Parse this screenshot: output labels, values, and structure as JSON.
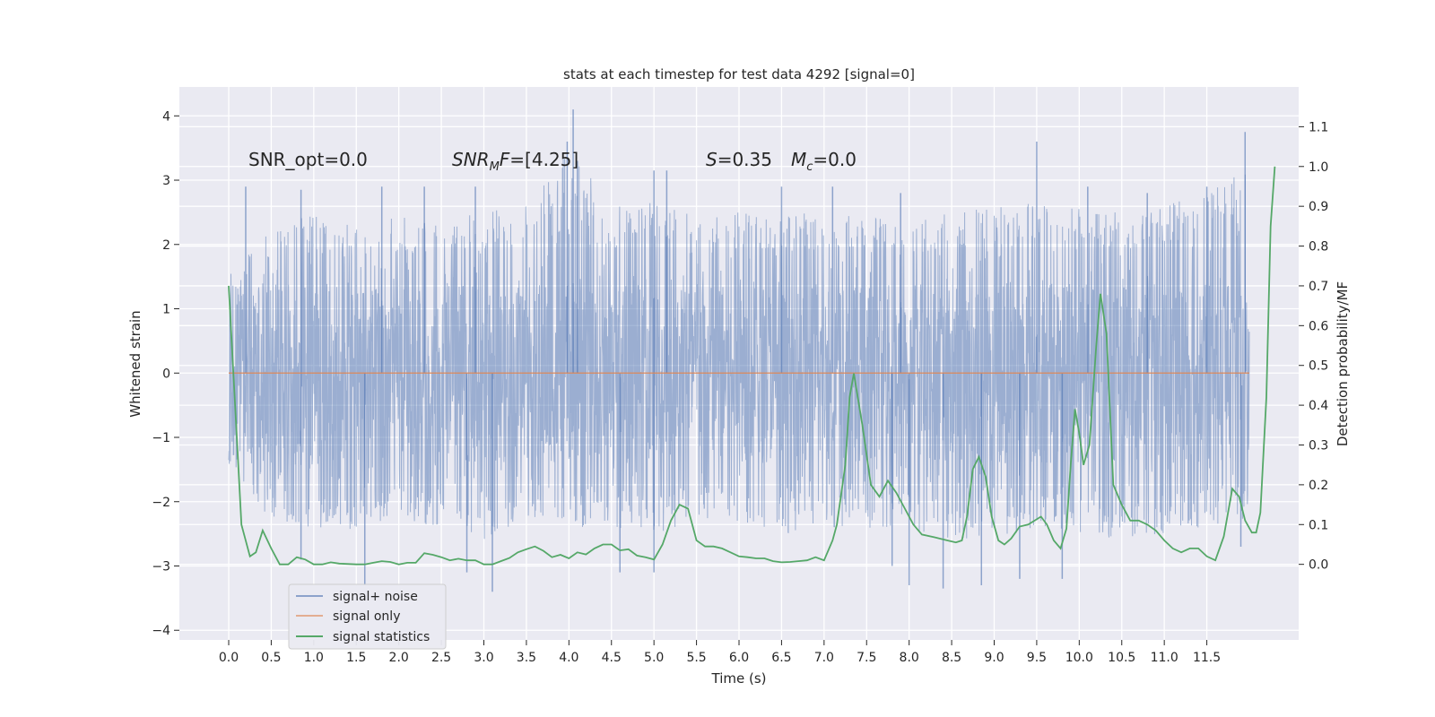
{
  "chart_data": {
    "type": "line",
    "title": "stats at each timestep for test data 4292 [signal=0]",
    "xlabel": "Time (s)",
    "ylabel": "Whitened strain",
    "ylabel_right": "Detection probability/MF",
    "xlim": [
      -0.58,
      12.58
    ],
    "ylim": [
      -4.15,
      4.45
    ],
    "ylim_right": [
      -0.19,
      1.2
    ],
    "x_ticks": [
      0.0,
      0.5,
      1.0,
      1.5,
      2.0,
      2.5,
      3.0,
      3.5,
      4.0,
      4.5,
      5.0,
      5.5,
      6.0,
      6.5,
      7.0,
      7.5,
      8.0,
      8.5,
      9.0,
      9.5,
      10.0,
      10.5,
      11.0,
      11.5
    ],
    "x_tick_labels": [
      "0.0",
      "0.5",
      "1.0",
      "1.5",
      "2.0",
      "2.5",
      "3.0",
      "3.5",
      "4.0",
      "4.5",
      "5.0",
      "5.5",
      "6.0",
      "6.5",
      "7.0",
      "7.5",
      "8.0",
      "8.5",
      "9.0",
      "9.5",
      "10.0",
      "10.5",
      "11.0",
      "11.5"
    ],
    "y_ticks": [
      -4,
      -3,
      -2,
      -1,
      0,
      1,
      2,
      3,
      4
    ],
    "y_tick_labels": [
      "−4",
      "−3",
      "−2",
      "−1",
      "0",
      "1",
      "2",
      "3",
      "4"
    ],
    "y_ticks_right": [
      0.0,
      0.1,
      0.2,
      0.3,
      0.4,
      0.5,
      0.6,
      0.7,
      0.8,
      0.9,
      1.0,
      1.1
    ],
    "y_tick_labels_right": [
      "0.0",
      "0.1",
      "0.2",
      "0.3",
      "0.4",
      "0.5",
      "0.6",
      "0.7",
      "0.8",
      "0.9",
      "1.0",
      "1.1"
    ],
    "grid": true,
    "legend_position": "lower-left",
    "annotations": {
      "snr_opt": "SNR_opt=0.0",
      "snr_mf_main": "SNR",
      "snr_mf_sub": "M",
      "snr_mf_rest": "F=[4.25]",
      "s_main": "S",
      "s_rest": "=0.35",
      "mc_main": "M",
      "mc_sub": "c",
      "mc_rest": "=0.0"
    },
    "series": [
      {
        "name": "signal+ noise",
        "color": "#4c72b0",
        "opacity": 0.5,
        "axis": "left",
        "duration": 12.0,
        "upper_envelope": [
          [
            0.0,
            1.6
          ],
          [
            0.5,
            2.2
          ],
          [
            1.0,
            2.5
          ],
          [
            1.5,
            2.3
          ],
          [
            2.0,
            2.5
          ],
          [
            2.5,
            2.4
          ],
          [
            3.0,
            2.5
          ],
          [
            3.5,
            2.6
          ],
          [
            4.0,
            3.5
          ],
          [
            4.5,
            2.6
          ],
          [
            5.0,
            2.7
          ],
          [
            5.5,
            2.5
          ],
          [
            6.0,
            2.5
          ],
          [
            6.5,
            2.5
          ],
          [
            7.0,
            2.5
          ],
          [
            7.5,
            2.4
          ],
          [
            8.0,
            2.4
          ],
          [
            8.5,
            2.5
          ],
          [
            9.0,
            2.6
          ],
          [
            9.5,
            2.7
          ],
          [
            10.0,
            2.6
          ],
          [
            10.5,
            2.5
          ],
          [
            11.0,
            2.6
          ],
          [
            11.5,
            2.8
          ],
          [
            12.0,
            3.2
          ]
        ],
        "lower_envelope": [
          [
            0.0,
            -1.4
          ],
          [
            0.5,
            -2.3
          ],
          [
            1.0,
            -2.4
          ],
          [
            1.5,
            -2.5
          ],
          [
            2.0,
            -2.3
          ],
          [
            2.5,
            -2.4
          ],
          [
            3.0,
            -2.6
          ],
          [
            3.5,
            -2.3
          ],
          [
            4.0,
            -2.4
          ],
          [
            4.5,
            -2.4
          ],
          [
            5.0,
            -2.5
          ],
          [
            5.5,
            -2.3
          ],
          [
            6.0,
            -2.3
          ],
          [
            6.5,
            -2.5
          ],
          [
            7.0,
            -2.4
          ],
          [
            7.5,
            -2.4
          ],
          [
            8.0,
            -2.5
          ],
          [
            8.5,
            -2.6
          ],
          [
            9.0,
            -2.6
          ],
          [
            9.5,
            -2.4
          ],
          [
            10.0,
            -2.5
          ],
          [
            10.5,
            -2.6
          ],
          [
            11.0,
            -2.5
          ],
          [
            11.5,
            -2.4
          ],
          [
            12.0,
            -2.3
          ]
        ],
        "peaks": [
          [
            0.2,
            2.9
          ],
          [
            0.85,
            2.85
          ],
          [
            1.8,
            2.9
          ],
          [
            2.3,
            2.9
          ],
          [
            2.9,
            2.9
          ],
          [
            4.05,
            4.1
          ],
          [
            3.98,
            3.6
          ],
          [
            4.1,
            3.3
          ],
          [
            5.0,
            3.15
          ],
          [
            5.15,
            3.15
          ],
          [
            6.5,
            2.9
          ],
          [
            7.1,
            2.9
          ],
          [
            7.9,
            2.8
          ],
          [
            9.5,
            3.6
          ],
          [
            10.1,
            2.9
          ],
          [
            10.8,
            2.8
          ],
          [
            11.5,
            2.9
          ],
          [
            11.95,
            3.75
          ],
          [
            1.6,
            -3.3
          ],
          [
            3.1,
            -3.4
          ],
          [
            2.8,
            -3.1
          ],
          [
            0.85,
            -2.9
          ],
          [
            4.6,
            -3.1
          ],
          [
            5.0,
            -3.1
          ],
          [
            7.8,
            -3.0
          ],
          [
            8.0,
            -3.3
          ],
          [
            8.4,
            -3.35
          ],
          [
            8.85,
            -3.3
          ],
          [
            9.3,
            -3.2
          ],
          [
            9.8,
            -3.2
          ],
          [
            11.9,
            -2.7
          ]
        ]
      },
      {
        "name": "signal only",
        "color": "#dd8452",
        "axis": "left",
        "points": [
          [
            0.0,
            0.0
          ],
          [
            12.0,
            0.0
          ]
        ]
      },
      {
        "name": "signal statistics",
        "color": "#55a868",
        "axis": "right",
        "points": [
          [
            0.0,
            0.7
          ],
          [
            0.1,
            0.3
          ],
          [
            0.15,
            0.1
          ],
          [
            0.25,
            0.02
          ],
          [
            0.32,
            0.03
          ],
          [
            0.4,
            0.085
          ],
          [
            0.5,
            0.04
          ],
          [
            0.6,
            0.0
          ],
          [
            0.7,
            0.0
          ],
          [
            0.8,
            0.018
          ],
          [
            0.9,
            0.012
          ],
          [
            1.0,
            0.0
          ],
          [
            1.1,
            0.0
          ],
          [
            1.2,
            0.005
          ],
          [
            1.3,
            0.002
          ],
          [
            1.5,
            0.0
          ],
          [
            1.6,
            0.0
          ],
          [
            1.7,
            0.004
          ],
          [
            1.8,
            0.008
          ],
          [
            1.9,
            0.006
          ],
          [
            2.0,
            0.0
          ],
          [
            2.1,
            0.004
          ],
          [
            2.2,
            0.004
          ],
          [
            2.3,
            0.028
          ],
          [
            2.4,
            0.024
          ],
          [
            2.5,
            0.018
          ],
          [
            2.6,
            0.01
          ],
          [
            2.7,
            0.014
          ],
          [
            2.8,
            0.01
          ],
          [
            2.9,
            0.01
          ],
          [
            3.0,
            0.0
          ],
          [
            3.1,
            0.0
          ],
          [
            3.2,
            0.008
          ],
          [
            3.3,
            0.016
          ],
          [
            3.4,
            0.03
          ],
          [
            3.5,
            0.038
          ],
          [
            3.6,
            0.045
          ],
          [
            3.7,
            0.034
          ],
          [
            3.8,
            0.018
          ],
          [
            3.9,
            0.024
          ],
          [
            4.0,
            0.015
          ],
          [
            4.1,
            0.03
          ],
          [
            4.2,
            0.025
          ],
          [
            4.3,
            0.04
          ],
          [
            4.4,
            0.05
          ],
          [
            4.5,
            0.05
          ],
          [
            4.6,
            0.035
          ],
          [
            4.7,
            0.038
          ],
          [
            4.8,
            0.022
          ],
          [
            4.9,
            0.018
          ],
          [
            5.0,
            0.012
          ],
          [
            5.1,
            0.05
          ],
          [
            5.2,
            0.11
          ],
          [
            5.3,
            0.15
          ],
          [
            5.4,
            0.14
          ],
          [
            5.5,
            0.06
          ],
          [
            5.6,
            0.045
          ],
          [
            5.7,
            0.045
          ],
          [
            5.8,
            0.04
          ],
          [
            5.9,
            0.03
          ],
          [
            6.0,
            0.02
          ],
          [
            6.1,
            0.018
          ],
          [
            6.2,
            0.015
          ],
          [
            6.3,
            0.015
          ],
          [
            6.4,
            0.008
          ],
          [
            6.5,
            0.005
          ],
          [
            6.6,
            0.006
          ],
          [
            6.8,
            0.01
          ],
          [
            6.9,
            0.018
          ],
          [
            7.0,
            0.01
          ],
          [
            7.1,
            0.06
          ],
          [
            7.15,
            0.1
          ],
          [
            7.25,
            0.25
          ],
          [
            7.3,
            0.42
          ],
          [
            7.35,
            0.48
          ],
          [
            7.45,
            0.35
          ],
          [
            7.55,
            0.2
          ],
          [
            7.65,
            0.17
          ],
          [
            7.75,
            0.21
          ],
          [
            7.85,
            0.18
          ],
          [
            7.95,
            0.14
          ],
          [
            8.05,
            0.1
          ],
          [
            8.15,
            0.075
          ],
          [
            8.3,
            0.068
          ],
          [
            8.45,
            0.06
          ],
          [
            8.55,
            0.055
          ],
          [
            8.62,
            0.06
          ],
          [
            8.68,
            0.12
          ],
          [
            8.75,
            0.24
          ],
          [
            8.82,
            0.27
          ],
          [
            8.9,
            0.22
          ],
          [
            8.97,
            0.12
          ],
          [
            9.05,
            0.06
          ],
          [
            9.12,
            0.05
          ],
          [
            9.2,
            0.065
          ],
          [
            9.3,
            0.095
          ],
          [
            9.4,
            0.1
          ],
          [
            9.55,
            0.12
          ],
          [
            9.62,
            0.1
          ],
          [
            9.7,
            0.06
          ],
          [
            9.78,
            0.04
          ],
          [
            9.85,
            0.09
          ],
          [
            9.9,
            0.25
          ],
          [
            9.95,
            0.39
          ],
          [
            10.0,
            0.33
          ],
          [
            10.05,
            0.25
          ],
          [
            10.12,
            0.3
          ],
          [
            10.2,
            0.55
          ],
          [
            10.25,
            0.68
          ],
          [
            10.32,
            0.58
          ],
          [
            10.4,
            0.2
          ],
          [
            10.5,
            0.15
          ],
          [
            10.6,
            0.11
          ],
          [
            10.7,
            0.11
          ],
          [
            10.8,
            0.1
          ],
          [
            10.9,
            0.085
          ],
          [
            11.0,
            0.06
          ],
          [
            11.1,
            0.04
          ],
          [
            11.2,
            0.03
          ],
          [
            11.3,
            0.04
          ],
          [
            11.4,
            0.04
          ],
          [
            11.5,
            0.02
          ],
          [
            11.6,
            0.01
          ],
          [
            11.7,
            0.07
          ],
          [
            11.8,
            0.19
          ],
          [
            11.88,
            0.17
          ],
          [
            11.95,
            0.11
          ],
          [
            12.03,
            0.08
          ],
          [
            12.08,
            0.08
          ],
          [
            12.13,
            0.13
          ],
          [
            12.2,
            0.42
          ],
          [
            12.25,
            0.85
          ],
          [
            12.3,
            1.0
          ]
        ]
      }
    ]
  }
}
